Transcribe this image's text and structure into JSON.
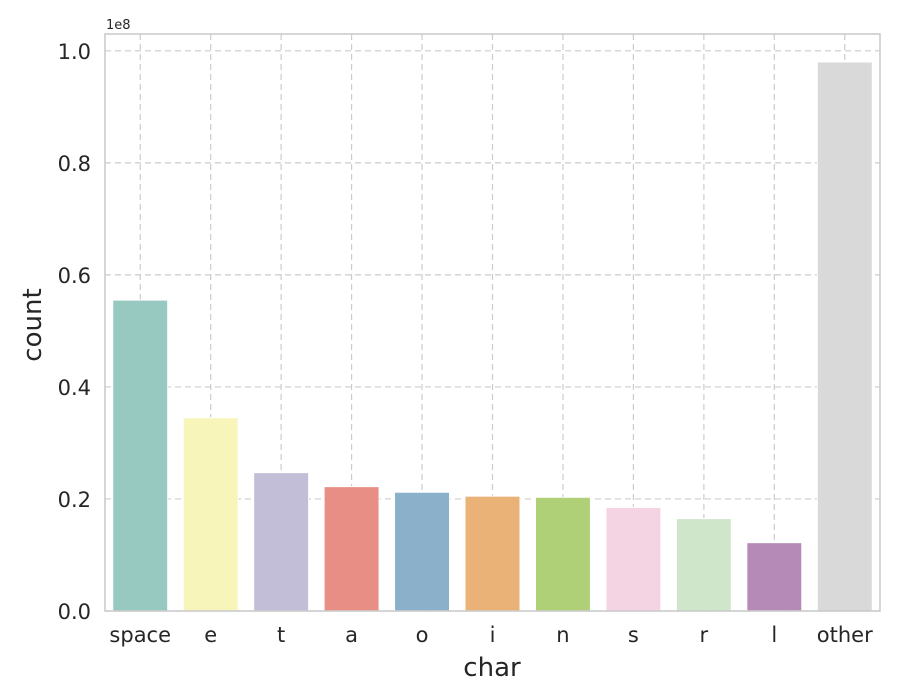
{
  "chart_data": {
    "type": "bar",
    "xlabel": "char",
    "ylabel": "count",
    "offset_label": "1e8",
    "y_scale_multiplier": 100000000,
    "categories": [
      "space",
      "e",
      "t",
      "a",
      "o",
      "i",
      "n",
      "s",
      "r",
      "l",
      "other"
    ],
    "values": [
      55500000,
      34500000,
      24700000,
      22200000,
      21200000,
      20500000,
      20300000,
      18500000,
      16500000,
      12200000,
      98000000
    ],
    "colors": [
      "#98c9c0",
      "#f7f5b9",
      "#c2bed7",
      "#e98e84",
      "#8bb0ca",
      "#eab276",
      "#b0d077",
      "#f4d3e3",
      "#d0e6ca",
      "#b68ab7",
      "#d9d9d9"
    ],
    "ylim": [
      0,
      103000000
    ],
    "yticks": [
      0,
      20000000,
      40000000,
      60000000,
      80000000,
      100000000
    ],
    "ytick_labels": [
      "0.0",
      "0.2",
      "0.4",
      "0.6",
      "0.8",
      "1.0"
    ],
    "grid": true,
    "legend": "none"
  }
}
